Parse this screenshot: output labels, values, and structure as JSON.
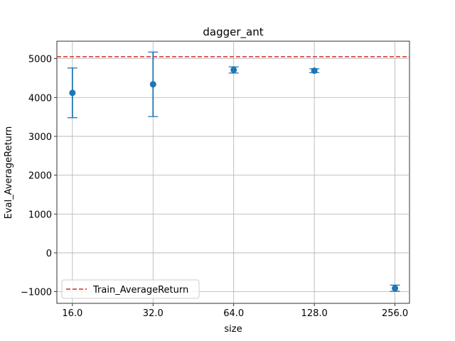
{
  "chart_data": {
    "type": "scatter",
    "title": "dagger_ant",
    "xlabel": "size",
    "ylabel": "Eval_AverageReturn",
    "categories": [
      "16.0",
      "32.0",
      "64.0",
      "128.0",
      "256.0"
    ],
    "x_scale": "log2",
    "x": [
      16,
      32,
      64,
      128,
      256
    ],
    "xlim": [
      14.0,
      290.0
    ],
    "ylim": [
      -1300,
      5450
    ],
    "yticks": [
      -1000,
      0,
      1000,
      2000,
      3000,
      4000,
      5000
    ],
    "ytick_labels": [
      "−1000",
      "0",
      "1000",
      "2000",
      "3000",
      "4000",
      "5000"
    ],
    "grid": true,
    "series": [
      {
        "kind": "errorbar",
        "color": "#1f77b4",
        "values": [
          4120,
          4340,
          4710,
          4690,
          -910
        ],
        "errors": [
          640,
          830,
          80,
          50,
          80
        ]
      }
    ],
    "reference_line": {
      "name": "Train_AverageReturn",
      "value": 5050,
      "color": "#d62728",
      "style": "dashed"
    },
    "legend_position": "lower-left"
  }
}
